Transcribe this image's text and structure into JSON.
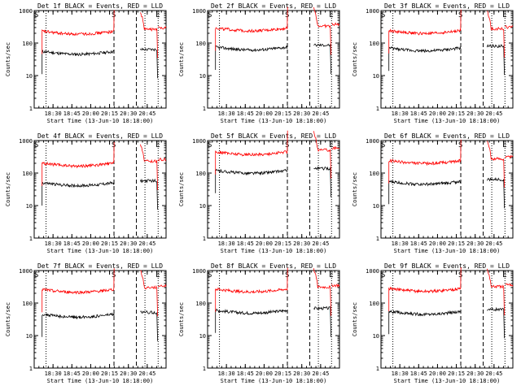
{
  "chart_data": [
    {
      "type": "line",
      "title": "Det 1f BLACK = Events, RED = LLD",
      "xlabel": "Start Time (13-Jun-10 18:18:00)",
      "ylabel": "Counts/sec",
      "y_scale": "log",
      "ylim": [
        1,
        1000
      ],
      "yticks": [
        "1",
        "10",
        "100",
        "1000"
      ],
      "xlim": [
        "18:18",
        "20:50"
      ],
      "xticks": [
        "18:30",
        "18:45",
        "20:00",
        "20:15",
        "20:30",
        "20:45"
      ],
      "markers": [
        "S",
        "E"
      ],
      "grid": false,
      "series": [
        {
          "name": "Events",
          "color": "#000000",
          "level": 55
        },
        {
          "name": "LLD",
          "color": "#ff0000",
          "level": 230
        }
      ]
    },
    {
      "type": "line",
      "title": "Det 2f BLACK = Events, RED = LLD",
      "xlabel": "Start Time (13-Jun-10 18:18:00)",
      "ylabel": "Counts/sec",
      "y_scale": "log",
      "ylim": [
        1,
        1000
      ],
      "yticks": [
        "1",
        "10",
        "100",
        "1000"
      ],
      "xlim": [
        "18:18",
        "20:50"
      ],
      "xticks": [
        "18:30",
        "18:45",
        "20:00",
        "20:15",
        "20:30",
        "20:45"
      ],
      "markers": [
        "S",
        "E"
      ],
      "grid": false,
      "series": [
        {
          "name": "Events",
          "color": "#000000",
          "level": 75
        },
        {
          "name": "LLD",
          "color": "#ff0000",
          "level": 290
        }
      ]
    },
    {
      "type": "line",
      "title": "Det 3f BLACK = Events, RED = LLD",
      "xlabel": "Start Time (13-Jun-10 18:18:00)",
      "ylabel": "Counts/sec",
      "y_scale": "log",
      "ylim": [
        1,
        1000
      ],
      "yticks": [
        "1",
        "10",
        "100",
        "1000"
      ],
      "xlim": [
        "18:18",
        "20:50"
      ],
      "xticks": [
        "18:30",
        "18:45",
        "20:00",
        "20:15",
        "20:30",
        "20:45"
      ],
      "markers": [
        "S",
        "E"
      ],
      "grid": false,
      "series": [
        {
          "name": "Events",
          "color": "#000000",
          "level": 70
        },
        {
          "name": "LLD",
          "color": "#ff0000",
          "level": 240
        }
      ]
    },
    {
      "type": "line",
      "title": "Det 4f BLACK = Events, RED = LLD",
      "xlabel": "Start Time (13-Jun-10 18:18:00)",
      "ylabel": "Counts/sec",
      "y_scale": "log",
      "ylim": [
        1,
        1000
      ],
      "yticks": [
        "1",
        "10",
        "100",
        "1000"
      ],
      "xlim": [
        "18:18",
        "20:50"
      ],
      "xticks": [
        "18:30",
        "18:45",
        "20:00",
        "20:15",
        "20:30",
        "20:45"
      ],
      "markers": [
        "S",
        "E"
      ],
      "grid": false,
      "series": [
        {
          "name": "Events",
          "color": "#000000",
          "level": 50
        },
        {
          "name": "LLD",
          "color": "#ff0000",
          "level": 200
        }
      ]
    },
    {
      "type": "line",
      "title": "Det 5f BLACK = Events, RED = LLD",
      "xlabel": "Start Time (13-Jun-10 18:18:00)",
      "ylabel": "Counts/sec",
      "y_scale": "log",
      "ylim": [
        1,
        1000
      ],
      "yticks": [
        "1",
        "10",
        "100",
        "1000"
      ],
      "xlim": [
        "18:18",
        "20:50"
      ],
      "xticks": [
        "18:30",
        "18:45",
        "20:00",
        "20:15",
        "20:30",
        "20:45"
      ],
      "markers": [
        "S",
        "E"
      ],
      "grid": false,
      "series": [
        {
          "name": "Events",
          "color": "#000000",
          "level": 120
        },
        {
          "name": "LLD",
          "color": "#ff0000",
          "level": 450
        }
      ]
    },
    {
      "type": "line",
      "title": "Det 6f BLACK = Events, RED = LLD",
      "xlabel": "Start Time (13-Jun-10 18:18:00)",
      "ylabel": "Counts/sec",
      "y_scale": "log",
      "ylim": [
        1,
        1000
      ],
      "yticks": [
        "1",
        "10",
        "100",
        "1000"
      ],
      "xlim": [
        "18:18",
        "20:50"
      ],
      "xticks": [
        "18:30",
        "18:45",
        "20:00",
        "20:15",
        "20:30",
        "20:45"
      ],
      "markers": [
        "S",
        "E"
      ],
      "grid": false,
      "series": [
        {
          "name": "Events",
          "color": "#000000",
          "level": 55
        },
        {
          "name": "LLD",
          "color": "#ff0000",
          "level": 240
        }
      ]
    },
    {
      "type": "line",
      "title": "Det 7f BLACK = Events, RED = LLD",
      "xlabel": "Start Time (13-Jun-10 18:18:00)",
      "ylabel": "Counts/sec",
      "y_scale": "log",
      "ylim": [
        1,
        1000
      ],
      "yticks": [
        "1",
        "10",
        "100",
        "1000"
      ],
      "xlim": [
        "18:18",
        "20:50"
      ],
      "xticks": [
        "18:30",
        "18:45",
        "20:00",
        "20:15",
        "20:30",
        "20:45"
      ],
      "markers": [
        "S",
        "E"
      ],
      "grid": false,
      "series": [
        {
          "name": "Events",
          "color": "#000000",
          "level": 45
        },
        {
          "name": "LLD",
          "color": "#ff0000",
          "level": 260
        }
      ]
    },
    {
      "type": "line",
      "title": "Det 8f BLACK = Events, RED = LLD",
      "xlabel": "Start Time (13-Jun-10 18:18:00)",
      "ylabel": "Counts/sec",
      "y_scale": "log",
      "ylim": [
        1,
        1000
      ],
      "yticks": [
        "1",
        "10",
        "100",
        "1000"
      ],
      "xlim": [
        "18:18",
        "20:50"
      ],
      "xticks": [
        "18:30",
        "18:45",
        "20:00",
        "20:15",
        "20:30",
        "20:45"
      ],
      "markers": [
        "S",
        "E"
      ],
      "grid": false,
      "series": [
        {
          "name": "Events",
          "color": "#000000",
          "level": 60
        },
        {
          "name": "LLD",
          "color": "#ff0000",
          "level": 270
        }
      ]
    },
    {
      "type": "line",
      "title": "Det 9f BLACK = Events, RED = LLD",
      "xlabel": "Start Time (13-Jun-10 18:18:00)",
      "ylabel": "Counts/sec",
      "y_scale": "log",
      "ylim": [
        1,
        1000
      ],
      "yticks": [
        "1",
        "10",
        "100",
        "1000"
      ],
      "xlim": [
        "18:18",
        "20:50"
      ],
      "xticks": [
        "18:30",
        "18:45",
        "20:00",
        "20:15",
        "20:30",
        "20:45"
      ],
      "markers": [
        "S",
        "E"
      ],
      "grid": false,
      "series": [
        {
          "name": "Events",
          "color": "#000000",
          "level": 55
        },
        {
          "name": "LLD",
          "color": "#ff0000",
          "level": 280
        }
      ]
    }
  ]
}
